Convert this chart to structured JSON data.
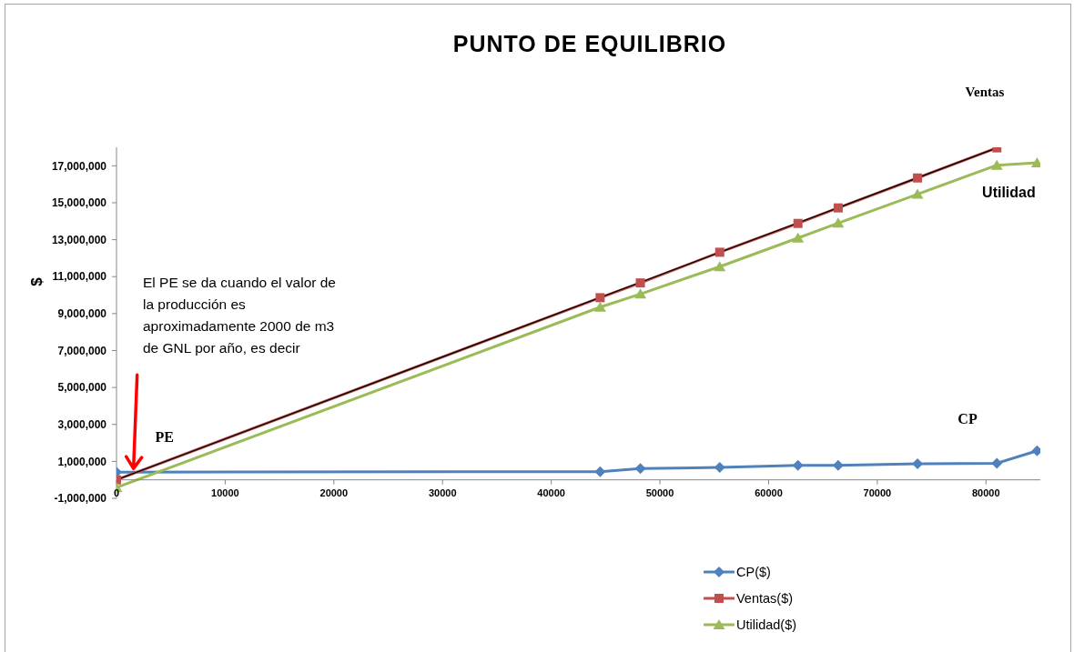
{
  "chart_data": {
    "type": "line",
    "title": "PUNTO DE EQUILIBRIO",
    "ylabel": "$",
    "x": [
      0,
      44500,
      48200,
      55500,
      62700,
      66400,
      73700,
      81000,
      84700
    ],
    "series": [
      {
        "name": "CP($)",
        "color": "#4f81bd",
        "marker": "diamond",
        "values": [
          420000,
          440000,
          610000,
          670000,
          780000,
          780000,
          870000,
          900000,
          1570000
        ]
      },
      {
        "name": "Ventas($)",
        "color": "#c0504d",
        "marker": "square",
        "values": [
          0,
          9860000,
          10660000,
          12320000,
          13880000,
          14720000,
          16340000,
          17970000,
          null
        ]
      },
      {
        "name": "Utilidad($)",
        "color": "#9bbb59",
        "marker": "triangle",
        "values": [
          -420000,
          9350000,
          10060000,
          11540000,
          13090000,
          13900000,
          15460000,
          17030000,
          17160000
        ]
      },
      {
        "type": "line",
        "color": "#000000",
        "marker": "none",
        "x": [
          0,
          81000
        ],
        "values": [
          0,
          17970000
        ]
      }
    ],
    "xlim": [
      0,
      85000
    ],
    "xticks": [
      0,
      10000,
      20000,
      30000,
      40000,
      50000,
      60000,
      70000,
      80000
    ],
    "ylim": [
      -1000000,
      18000000
    ],
    "yticks": [
      {
        "value": -1000000,
        "label": "-1,000,000"
      },
      {
        "value": 1000000,
        "label": "1,000,000"
      },
      {
        "value": 3000000,
        "label": "3,000,000"
      },
      {
        "value": 5000000,
        "label": "5,000,000"
      },
      {
        "value": 7000000,
        "label": "7,000,000"
      },
      {
        "value": 9000000,
        "label": "9,000,000"
      },
      {
        "value": 11000000,
        "label": "11,000,000"
      },
      {
        "value": 13000000,
        "label": "13,000,000"
      },
      {
        "value": 15000000,
        "label": "15,000,000"
      },
      {
        "value": 17000000,
        "label": "17,000,000"
      }
    ],
    "legend": "bottom",
    "annotations": [
      "Ventas",
      {
        "text": "Utilidad",
        "x": 84700,
        "y": 17160000
      },
      "CP",
      {
        "text": "PE",
        "x": 1900,
        "y": 420000
      },
      "El PE se da cuando el valor de la producción es aproximadamente 2000 de m3 de GNL por año, es decir"
    ]
  }
}
